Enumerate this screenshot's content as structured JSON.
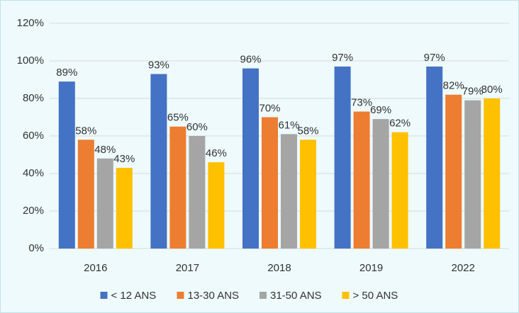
{
  "chart_data": {
    "type": "bar",
    "categories": [
      "2016",
      "2017",
      "2018",
      "2019",
      "2022"
    ],
    "series": [
      {
        "name": "< 12 ANS",
        "color": "#4472c4",
        "values": [
          89,
          93,
          96,
          97,
          97
        ],
        "value_labels": [
          "89%",
          "93%",
          "96%",
          "97%",
          "97%"
        ]
      },
      {
        "name": "13-30 ANS",
        "color": "#ed7d31",
        "values": [
          58,
          65,
          70,
          73,
          82
        ],
        "value_labels": [
          "58%",
          "65%",
          "70%",
          "73%",
          "82%"
        ]
      },
      {
        "name": "31-50 ANS",
        "color": "#a5a5a5",
        "values": [
          48,
          60,
          61,
          69,
          79
        ],
        "value_labels": [
          "48%",
          "60%",
          "61%",
          "69%",
          "79%"
        ]
      },
      {
        "name": "> 50 ANS",
        "color": "#ffc000",
        "values": [
          43,
          46,
          58,
          62,
          80
        ],
        "value_labels": [
          "43%",
          "46%",
          "58%",
          "62%",
          "80%"
        ]
      }
    ],
    "ylim": [
      0,
      120
    ],
    "yticks": [
      {
        "value": 0,
        "label": "0%"
      },
      {
        "value": 20,
        "label": "20%"
      },
      {
        "value": 40,
        "label": "40%"
      },
      {
        "value": 60,
        "label": "60%"
      },
      {
        "value": 80,
        "label": "80%"
      },
      {
        "value": 100,
        "label": "100%"
      },
      {
        "value": 120,
        "label": "120%"
      }
    ],
    "grid": true,
    "legend": "bottom"
  }
}
